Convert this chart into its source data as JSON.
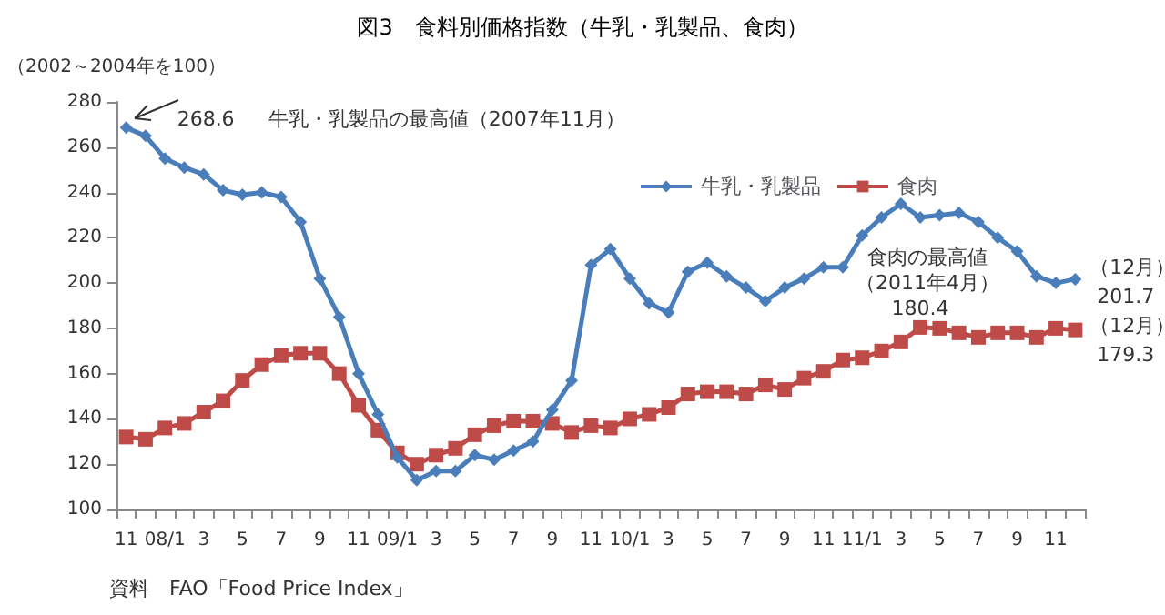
{
  "chart_data": {
    "type": "line",
    "title": "図3　食料別価格指数（牛乳・乳製品、食肉）",
    "ylabel": "（2002～2004年を100）",
    "categories": [
      "11",
      null,
      "08/1",
      null,
      "3",
      null,
      "5",
      null,
      "7",
      null,
      "9",
      null,
      "11",
      null,
      "09/1",
      null,
      "3",
      null,
      "5",
      null,
      "7",
      null,
      "9",
      null,
      "11",
      null,
      "10/1",
      null,
      "3",
      null,
      "5",
      null,
      "7",
      null,
      "9",
      null,
      "11",
      null,
      "11/1",
      null,
      "3",
      null,
      "5",
      null,
      "7",
      null,
      "9",
      null,
      "11",
      null
    ],
    "series": [
      {
        "name": "牛乳・乳製品",
        "color": "#4a7ebb",
        "marker": "diamond",
        "values": [
          268.6,
          265,
          255,
          251,
          248,
          241,
          239,
          240,
          238,
          227,
          202,
          185,
          160,
          142,
          123,
          113,
          117,
          117,
          124,
          122,
          126,
          130,
          144,
          157,
          208,
          215,
          202,
          191,
          187,
          205,
          209,
          203,
          198,
          192,
          198,
          202,
          207,
          207,
          221,
          229,
          235,
          229,
          230,
          231,
          227,
          220,
          214,
          203,
          200,
          201.7
        ]
      },
      {
        "name": "食肉",
        "color": "#be4b48",
        "marker": "square",
        "values": [
          132,
          131,
          136,
          138,
          143,
          148,
          157,
          164,
          168,
          169,
          169,
          160,
          146,
          135,
          125,
          120,
          124,
          127,
          133,
          137,
          139,
          139,
          138,
          134,
          137,
          136,
          140,
          142,
          145,
          151,
          152,
          152,
          151,
          155,
          153,
          158,
          161,
          166,
          167,
          170,
          174,
          180.4,
          180,
          178,
          176,
          178,
          178,
          176,
          180,
          179.3
        ]
      }
    ],
    "ylim": [
      100,
      280
    ],
    "yticks": [
      100,
      120,
      140,
      160,
      180,
      200,
      220,
      240,
      260,
      280
    ],
    "grid": false,
    "legend": "top right",
    "line_style": "solid",
    "annotations": [
      "268.6",
      "牛乳・乳製品の最高値（2007年11月）",
      "食肉の最高値",
      "（2011年4月）",
      "180.4",
      "（12月）",
      "201.7",
      "（12月）",
      "179.3",
      "資料　FAO「Food Price Index」"
    ]
  }
}
